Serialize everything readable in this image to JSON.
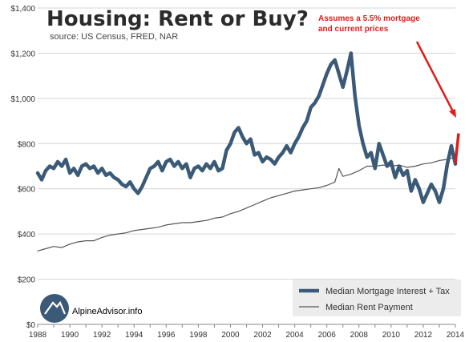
{
  "chart_data": {
    "type": "line",
    "title": "Housing: Rent or Buy?",
    "subtitle": "source: US Census, FRED, NAR",
    "annotation": "Assumes a 5.5% mortgage\nand current prices",
    "xlim": [
      1988,
      2014
    ],
    "ylim": [
      0,
      1400
    ],
    "x_ticks": [
      "1988",
      "1990",
      "1992",
      "1994",
      "1996",
      "1998",
      "2000",
      "2002",
      "2004",
      "2006",
      "2008",
      "2010",
      "2012",
      "2014"
    ],
    "y_ticks": [
      "$0",
      "$200",
      "$400",
      "$600",
      "$800",
      "$1,000",
      "$1,200",
      "$1,400"
    ],
    "grid": true,
    "legend_position": "bottom-right",
    "brand": "AlpineAdvisor.info",
    "colors": {
      "mortgage": "#3a5a78",
      "rent": "#555555",
      "annotation": "#e01b1b",
      "grid": "#d4d4d4"
    },
    "series": [
      {
        "name": "Median Mortgage Interest + Tax",
        "color": "#3a5a78",
        "points": [
          [
            1988.0,
            670
          ],
          [
            1988.25,
            640
          ],
          [
            1988.5,
            680
          ],
          [
            1988.75,
            700
          ],
          [
            1989.0,
            690
          ],
          [
            1989.25,
            720
          ],
          [
            1989.5,
            700
          ],
          [
            1989.75,
            730
          ],
          [
            1990.0,
            670
          ],
          [
            1990.25,
            690
          ],
          [
            1990.5,
            660
          ],
          [
            1990.75,
            700
          ],
          [
            1991.0,
            710
          ],
          [
            1991.25,
            690
          ],
          [
            1991.5,
            700
          ],
          [
            1991.75,
            670
          ],
          [
            1992.0,
            690
          ],
          [
            1992.25,
            660
          ],
          [
            1992.5,
            670
          ],
          [
            1992.75,
            650
          ],
          [
            1993.0,
            640
          ],
          [
            1993.25,
            620
          ],
          [
            1993.5,
            610
          ],
          [
            1993.75,
            630
          ],
          [
            1994.0,
            600
          ],
          [
            1994.25,
            580
          ],
          [
            1994.5,
            610
          ],
          [
            1994.75,
            650
          ],
          [
            1995.0,
            690
          ],
          [
            1995.25,
            700
          ],
          [
            1995.5,
            720
          ],
          [
            1995.75,
            680
          ],
          [
            1996.0,
            720
          ],
          [
            1996.25,
            730
          ],
          [
            1996.5,
            700
          ],
          [
            1996.75,
            720
          ],
          [
            1997.0,
            690
          ],
          [
            1997.25,
            710
          ],
          [
            1997.5,
            650
          ],
          [
            1997.75,
            690
          ],
          [
            1998.0,
            700
          ],
          [
            1998.25,
            680
          ],
          [
            1998.5,
            710
          ],
          [
            1998.75,
            690
          ],
          [
            1999.0,
            720
          ],
          [
            1999.25,
            680
          ],
          [
            1999.5,
            690
          ],
          [
            1999.75,
            770
          ],
          [
            2000.0,
            800
          ],
          [
            2000.25,
            850
          ],
          [
            2000.5,
            870
          ],
          [
            2000.75,
            830
          ],
          [
            2001.0,
            800
          ],
          [
            2001.25,
            820
          ],
          [
            2001.5,
            750
          ],
          [
            2001.75,
            760
          ],
          [
            2002.0,
            720
          ],
          [
            2002.25,
            740
          ],
          [
            2002.5,
            730
          ],
          [
            2002.75,
            710
          ],
          [
            2003.0,
            740
          ],
          [
            2003.25,
            760
          ],
          [
            2003.5,
            790
          ],
          [
            2003.75,
            760
          ],
          [
            2004.0,
            800
          ],
          [
            2004.25,
            830
          ],
          [
            2004.5,
            870
          ],
          [
            2004.75,
            900
          ],
          [
            2005.0,
            960
          ],
          [
            2005.25,
            980
          ],
          [
            2005.5,
            1010
          ],
          [
            2005.75,
            1060
          ],
          [
            2006.0,
            1110
          ],
          [
            2006.25,
            1150
          ],
          [
            2006.5,
            1170
          ],
          [
            2006.75,
            1110
          ],
          [
            2007.0,
            1050
          ],
          [
            2007.25,
            1120
          ],
          [
            2007.5,
            1200
          ],
          [
            2007.75,
            1010
          ],
          [
            2008.0,
            880
          ],
          [
            2008.25,
            800
          ],
          [
            2008.5,
            740
          ],
          [
            2008.75,
            760
          ],
          [
            2009.0,
            690
          ],
          [
            2009.25,
            800
          ],
          [
            2009.5,
            750
          ],
          [
            2009.75,
            700
          ],
          [
            2010.0,
            720
          ],
          [
            2010.25,
            650
          ],
          [
            2010.5,
            700
          ],
          [
            2010.75,
            660
          ],
          [
            2011.0,
            680
          ],
          [
            2011.25,
            590
          ],
          [
            2011.5,
            640
          ],
          [
            2011.75,
            600
          ],
          [
            2012.0,
            540
          ],
          [
            2012.25,
            580
          ],
          [
            2012.5,
            620
          ],
          [
            2012.75,
            590
          ],
          [
            2013.0,
            540
          ],
          [
            2013.25,
            600
          ],
          [
            2013.5,
            710
          ],
          [
            2013.75,
            790
          ],
          [
            2014.0,
            710
          ]
        ]
      },
      {
        "name": "Median Rent Payment",
        "color": "#555555",
        "points": [
          [
            1988.0,
            325
          ],
          [
            1988.5,
            335
          ],
          [
            1989.0,
            345
          ],
          [
            1989.5,
            340
          ],
          [
            1990.0,
            355
          ],
          [
            1990.5,
            365
          ],
          [
            1991.0,
            370
          ],
          [
            1991.5,
            370
          ],
          [
            1992.0,
            385
          ],
          [
            1992.5,
            395
          ],
          [
            1993.0,
            400
          ],
          [
            1993.5,
            405
          ],
          [
            1994.0,
            415
          ],
          [
            1994.5,
            420
          ],
          [
            1995.0,
            425
          ],
          [
            1995.5,
            430
          ],
          [
            1996.0,
            440
          ],
          [
            1996.5,
            445
          ],
          [
            1997.0,
            450
          ],
          [
            1997.5,
            450
          ],
          [
            1998.0,
            455
          ],
          [
            1998.5,
            460
          ],
          [
            1999.0,
            470
          ],
          [
            1999.5,
            475
          ],
          [
            2000.0,
            490
          ],
          [
            2000.5,
            500
          ],
          [
            2001.0,
            515
          ],
          [
            2001.5,
            530
          ],
          [
            2002.0,
            545
          ],
          [
            2002.5,
            560
          ],
          [
            2003.0,
            570
          ],
          [
            2003.5,
            580
          ],
          [
            2004.0,
            590
          ],
          [
            2004.5,
            595
          ],
          [
            2005.0,
            600
          ],
          [
            2005.5,
            605
          ],
          [
            2006.0,
            615
          ],
          [
            2006.5,
            630
          ],
          [
            2006.75,
            690
          ],
          [
            2007.0,
            655
          ],
          [
            2007.5,
            665
          ],
          [
            2008.0,
            680
          ],
          [
            2008.5,
            700
          ],
          [
            2009.0,
            700
          ],
          [
            2009.5,
            705
          ],
          [
            2010.0,
            700
          ],
          [
            2010.5,
            705
          ],
          [
            2011.0,
            695
          ],
          [
            2011.5,
            700
          ],
          [
            2012.0,
            710
          ],
          [
            2012.5,
            715
          ],
          [
            2013.0,
            725
          ],
          [
            2013.5,
            730
          ],
          [
            2014.0,
            740
          ]
        ]
      }
    ]
  }
}
